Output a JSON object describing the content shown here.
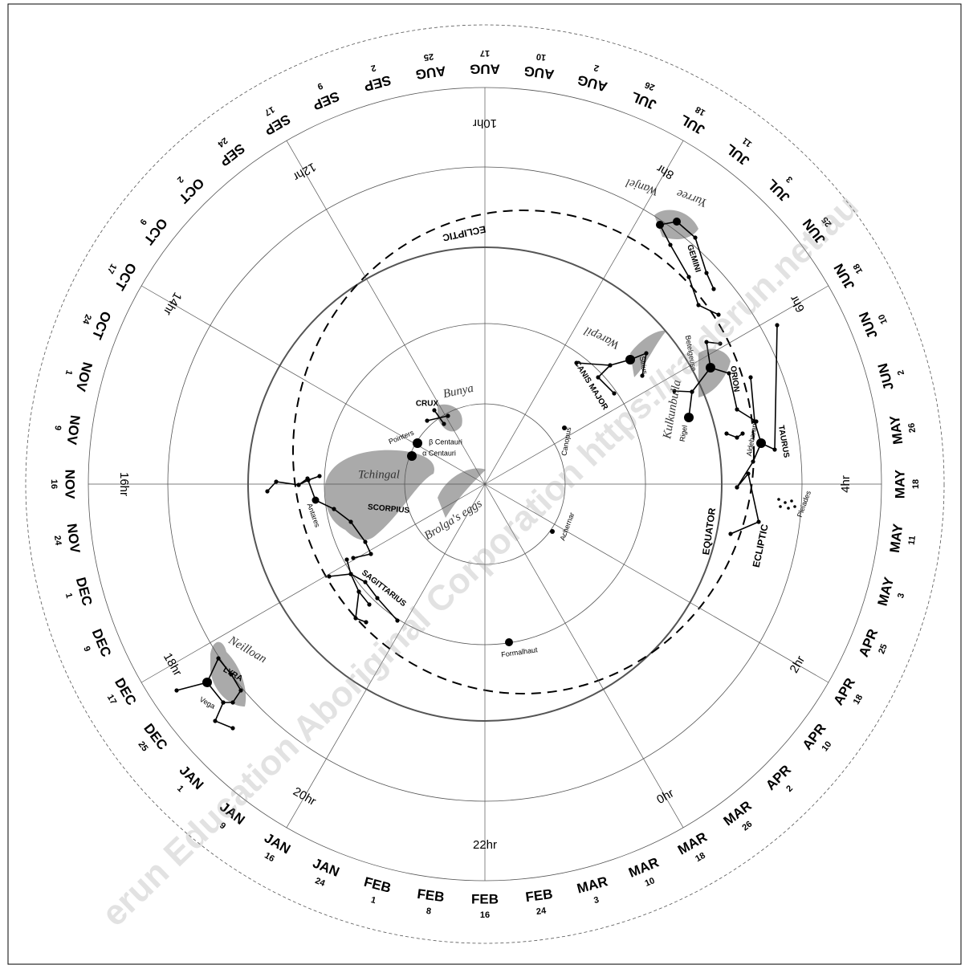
{
  "hours": [
    "22hr",
    "0hr",
    "2hr",
    "4hr",
    "6hr",
    "8hr",
    "10hr",
    "12hr",
    "14hr",
    "16hr",
    "18hr",
    "20hr"
  ],
  "dates": [
    {
      "month": "FEB",
      "day": 16
    },
    {
      "month": "FEB",
      "day": 24
    },
    {
      "month": "MAR",
      "day": 3
    },
    {
      "month": "MAR",
      "day": 10
    },
    {
      "month": "MAR",
      "day": 18
    },
    {
      "month": "MAR",
      "day": 26
    },
    {
      "month": "APR",
      "day": 2
    },
    {
      "month": "APR",
      "day": 10
    },
    {
      "month": "APR",
      "day": 18
    },
    {
      "month": "APR",
      "day": 25
    },
    {
      "month": "MAY",
      "day": 3
    },
    {
      "month": "MAY",
      "day": 11
    },
    {
      "month": "MAY",
      "day": 18
    },
    {
      "month": "MAY",
      "day": 26
    },
    {
      "month": "JUN",
      "day": 2
    },
    {
      "month": "JUN",
      "day": 10
    },
    {
      "month": "JUN",
      "day": 18
    },
    {
      "month": "JUN",
      "day": 25
    },
    {
      "month": "JUL",
      "day": 3
    },
    {
      "month": "JUL",
      "day": 11
    },
    {
      "month": "JUL",
      "day": 18
    },
    {
      "month": "JUL",
      "day": 26
    },
    {
      "month": "AUG",
      "day": 2
    },
    {
      "month": "AUG",
      "day": 10
    },
    {
      "month": "AUG",
      "day": 17
    },
    {
      "month": "AUG",
      "day": 25
    },
    {
      "month": "SEP",
      "day": 2
    },
    {
      "month": "SEP",
      "day": 9
    },
    {
      "month": "SEP",
      "day": 17
    },
    {
      "month": "SEP",
      "day": 24
    },
    {
      "month": "OCT",
      "day": 2
    },
    {
      "month": "OCT",
      "day": 9
    },
    {
      "month": "OCT",
      "day": 17
    },
    {
      "month": "OCT",
      "day": 24
    },
    {
      "month": "NOV",
      "day": 1
    },
    {
      "month": "NOV",
      "day": 9
    },
    {
      "month": "NOV",
      "day": 16
    },
    {
      "month": "NOV",
      "day": 24
    },
    {
      "month": "DEC",
      "day": 1
    },
    {
      "month": "DEC",
      "day": 9
    },
    {
      "month": "DEC",
      "day": 17
    },
    {
      "month": "DEC",
      "day": 25
    },
    {
      "month": "JAN",
      "day": 1
    },
    {
      "month": "JAN",
      "day": 9
    },
    {
      "month": "JAN",
      "day": 16
    },
    {
      "month": "JAN",
      "day": 24
    },
    {
      "month": "FEB",
      "day": 1
    },
    {
      "month": "FEB",
      "day": 8
    }
  ],
  "labels": {
    "ecliptic_top": "ECLIPTIC",
    "ecliptic_right": "ECLIPTIC",
    "equator": "EQUATOR",
    "gemini": "GEMINI",
    "orion": "ORION",
    "taurus": "TAURUS",
    "canis_major": "CANIS MAJOR",
    "crux": "CRUX",
    "scorpius": "SCORPIUS",
    "sagittarius": "SAGITTARIUS",
    "lyra": "LYRA"
  },
  "stars": {
    "pointers": "Pointers",
    "beta_centauri": "β Centauri",
    "alpha_centauri": "α Centauri",
    "antares": "Antares",
    "vega": "Vega",
    "pleiades": "Pleiades",
    "aldebaran": "Aldebaran",
    "betelgeuse": "Betelgeuse",
    "rigel": "Rigel",
    "sirius": "Sirius",
    "canopus": "Canopus",
    "achernar": "Achernar",
    "formalhaut": "Formalhaut"
  },
  "aboriginal_names": {
    "yurree": "Yurree",
    "wanjel": "Wanjel",
    "warepil": "Warepil",
    "kulkunbulla": "Kulkunbulla",
    "bunya": "Bunya",
    "tchingal": "Tchingal",
    "brolgas_eggs": "Brolga's eggs",
    "neilloan": "Neilloan"
  },
  "watermark": "erun Education Aboriginal Corporation https://raiderun.net.au"
}
